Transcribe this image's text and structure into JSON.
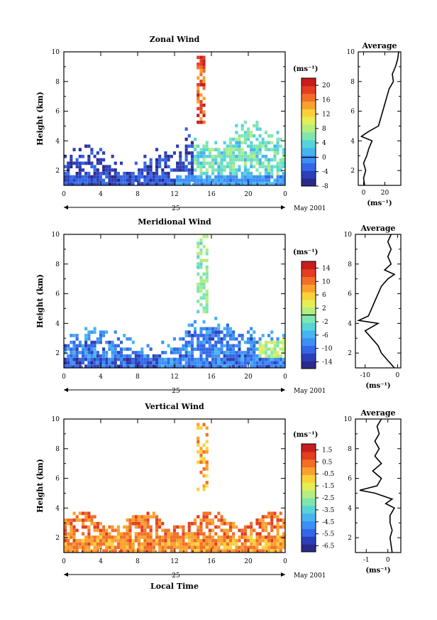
{
  "chart_data": [
    {
      "type": "heatmap",
      "title": "Zonal Wind",
      "ylabel": "Height (km)",
      "xlabel": "",
      "xlim": [
        0,
        24
      ],
      "ylim": [
        1,
        10
      ],
      "xticks": [
        "0",
        "4",
        "8",
        "12",
        "16",
        "20",
        "0"
      ],
      "yticks": [
        "2",
        "4",
        "6",
        "8",
        "10"
      ],
      "date_label": "25",
      "date_suffix": "May 2001",
      "colorbar": {
        "unit": "(ms⁻¹)",
        "min": -8,
        "max": 22,
        "ticks": [
          "-8",
          "-4",
          "0",
          "4",
          "8",
          "12",
          "16",
          "20"
        ],
        "contour_value": 0,
        "colors": [
          "#2b2a8a",
          "#2c3fb8",
          "#3367e6",
          "#3d8ff5",
          "#46b4f0",
          "#58d4d8",
          "#7fe6b0",
          "#b4ee7f",
          "#e6ee55",
          "#fbd139",
          "#f9a12e",
          "#f26e27",
          "#e43d21",
          "#c81d1d"
        ]
      },
      "profile": {
        "title": "Average",
        "xlabel": "(ms⁻¹)",
        "xlim": [
          -5,
          35
        ],
        "xticks": [
          "0",
          "20"
        ],
        "heights": [
          1,
          1.5,
          2,
          2.5,
          3,
          3.5,
          4,
          4.3,
          4.6,
          5,
          5.5,
          6,
          6.5,
          7,
          7.5,
          8,
          8.5,
          9,
          9.5,
          10
        ],
        "values": [
          1,
          0,
          2,
          0,
          3,
          5,
          8,
          -2,
          4,
          14,
          16,
          18,
          20,
          22,
          24,
          28,
          27,
          30,
          32,
          33
        ]
      }
    },
    {
      "type": "heatmap",
      "title": "Meridional Wind",
      "ylabel": "Height (km)",
      "xlabel": "",
      "xlim": [
        0,
        24
      ],
      "ylim": [
        1,
        10
      ],
      "xticks": [
        "0",
        "4",
        "8",
        "12",
        "16",
        "20",
        "0"
      ],
      "yticks": [
        "2",
        "4",
        "6",
        "8",
        "10"
      ],
      "date_label": "25",
      "date_suffix": "May 2001",
      "colorbar": {
        "unit": "(ms⁻¹)",
        "min": -16,
        "max": 16,
        "ticks": [
          "-14",
          "-10",
          "-6",
          "-2",
          "2",
          "6",
          "10",
          "14"
        ],
        "contour_value": 0,
        "colors": [
          "#2b2a8a",
          "#2c3fb8",
          "#3367e6",
          "#3d8ff5",
          "#46b4f0",
          "#58d4d8",
          "#7fe6b0",
          "#b4ee7f",
          "#e6ee55",
          "#fbd139",
          "#f9a12e",
          "#f26e27",
          "#e43d21",
          "#c81d1d"
        ]
      },
      "profile": {
        "title": "Average",
        "xlabel": "(ms⁻¹)",
        "xlim": [
          -13,
          1
        ],
        "xticks": [
          "-10",
          "0"
        ],
        "heights": [
          1,
          1.5,
          2,
          2.5,
          3,
          3.5,
          4,
          4.2,
          4.5,
          5,
          5.5,
          6,
          6.5,
          7,
          7.3,
          7.6,
          8,
          8.5,
          9,
          9.5,
          10
        ],
        "values": [
          -1,
          -3,
          -5,
          -6,
          -8,
          -10,
          -6,
          -12,
          -9,
          -8,
          -7,
          -6,
          -5,
          -3,
          -1,
          -4,
          -2,
          -3,
          -2,
          -3,
          -2
        ]
      }
    },
    {
      "type": "heatmap",
      "title": "Vertical Wind",
      "ylabel": "Height (km)",
      "xlabel": "Local Time",
      "xlim": [
        0,
        24
      ],
      "ylim": [
        1,
        10
      ],
      "xticks": [
        "0",
        "4",
        "8",
        "12",
        "16",
        "20",
        "0"
      ],
      "yticks": [
        "2",
        "4",
        "6",
        "8",
        "10"
      ],
      "date_label": "25",
      "date_suffix": "May 2001",
      "colorbar": {
        "unit": "(ms⁻¹)",
        "min": -7,
        "max": 2,
        "ticks": [
          "-6.5",
          "-5.5",
          "-4.5",
          "-3.5",
          "-2.5",
          "-1.5",
          "-0.5",
          "0.5",
          "1.5"
        ],
        "colors": [
          "#2b2a8a",
          "#2c3fb8",
          "#3367e6",
          "#3d8ff5",
          "#46b4f0",
          "#58d4d8",
          "#7fe6b0",
          "#b4ee7f",
          "#e6ee55",
          "#fbd139",
          "#f9a12e",
          "#f26e27",
          "#e43d21",
          "#c81d1d"
        ]
      },
      "profile": {
        "title": "Average",
        "xlabel": "(ms⁻¹)",
        "xlim": [
          -1.5,
          0.6
        ],
        "xticks": [
          "-1",
          "0"
        ],
        "heights": [
          1,
          1.5,
          2,
          2.5,
          3,
          3.5,
          4,
          4.3,
          4.6,
          5,
          5.2,
          5.5,
          6,
          6.5,
          7,
          7.5,
          8,
          8.5,
          9,
          9.5,
          10
        ],
        "values": [
          0.2,
          0.15,
          0.1,
          0.2,
          0.1,
          0.1,
          0.3,
          -0.1,
          0.2,
          -0.6,
          -1.3,
          -0.5,
          -0.3,
          -0.7,
          -0.3,
          -0.6,
          -0.4,
          -0.6,
          -0.4,
          -0.5,
          -0.3
        ]
      }
    }
  ]
}
